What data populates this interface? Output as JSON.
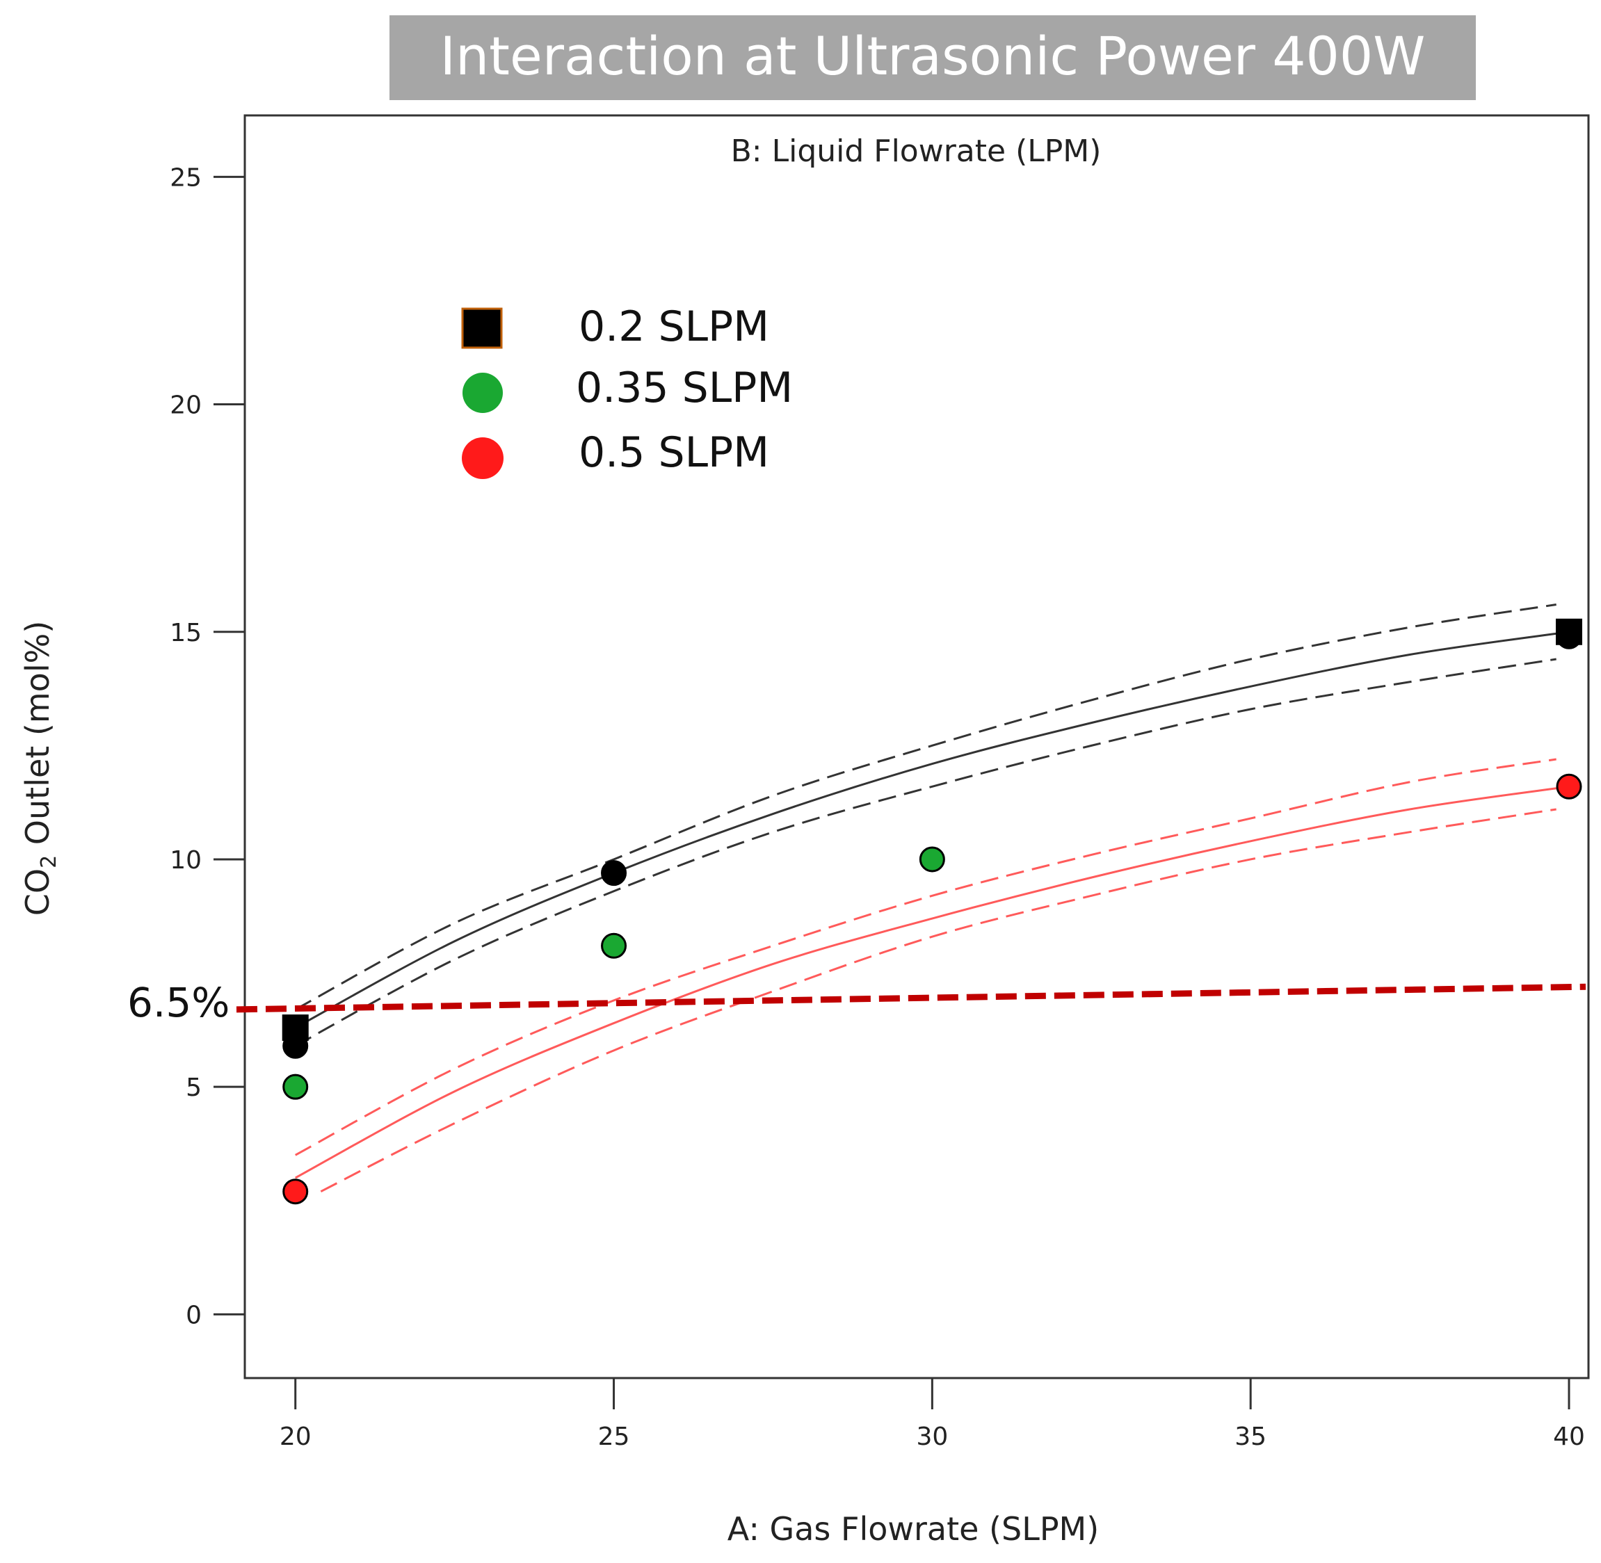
{
  "colors": {
    "title_bg": "#a6a6a6",
    "title_fg": "#ffffff",
    "black_series": "#000000",
    "green_series": "#1aa832",
    "red_series": "#ff1a1a",
    "red_fit": "#ff5a5a",
    "threshold": "#c00000",
    "axis": "#333333"
  },
  "chart_data": {
    "type": "scatter",
    "title": "Interaction at Ultrasonic Power 400W",
    "subtitle": "B: Liquid Flowrate (LPM)",
    "xlabel": "A: Gas Flowrate (SLPM)",
    "ylabel_main": "CO",
    "ylabel_sub": "2",
    "ylabel_rest": " Outlet (mol%)",
    "xlim": [
      18.9,
      40.0
    ],
    "ylim": [
      -1.4,
      26.35
    ],
    "x_ticks": [
      20,
      25,
      30,
      35,
      40
    ],
    "y_ticks": [
      0,
      5,
      10,
      15,
      20,
      25
    ],
    "legend": [
      {
        "label": "0.2 SLPM",
        "marker": "square",
        "color": "#000000"
      },
      {
        "label": "0.35 SLPM",
        "marker": "circle",
        "color": "#1aa832"
      },
      {
        "label": "0.5 SLPM",
        "marker": "circle",
        "color": "#ff1a1a"
      }
    ],
    "series": [
      {
        "name": "0.2 SLPM",
        "color": "#000000",
        "points": [
          {
            "x": 20,
            "y": 6.3,
            "marker": "square"
          },
          {
            "x": 20,
            "y": 5.9,
            "marker": "circle"
          },
          {
            "x": 25,
            "y": 9.7,
            "marker": "circle"
          },
          {
            "x": 40,
            "y": 15.0,
            "marker": "square"
          },
          {
            "x": 40,
            "y": 14.9,
            "marker": "circle"
          }
        ],
        "fit": {
          "x": [
            20,
            22.5,
            25,
            27.5,
            30,
            32.5,
            35,
            37.5,
            40
          ],
          "y": [
            6.3,
            8.2,
            9.7,
            11.0,
            12.1,
            13.0,
            13.8,
            14.5,
            15.0
          ]
        },
        "ci_upper": {
          "x": [
            20,
            22.5,
            25,
            27.5,
            30,
            32.5,
            35,
            37.5,
            39.8
          ],
          "y": [
            6.7,
            8.6,
            10.0,
            11.4,
            12.5,
            13.5,
            14.4,
            15.1,
            15.6
          ]
        },
        "ci_lower": {
          "x": [
            20,
            22.5,
            25,
            27.5,
            30,
            32.5,
            35,
            37.5,
            39.8
          ],
          "y": [
            5.9,
            7.8,
            9.3,
            10.6,
            11.6,
            12.5,
            13.3,
            13.9,
            14.4
          ]
        }
      },
      {
        "name": "0.35 SLPM",
        "color": "#1aa832",
        "points": [
          {
            "x": 20,
            "y": 5.0,
            "marker": "circle"
          },
          {
            "x": 25,
            "y": 8.1,
            "marker": "circle"
          },
          {
            "x": 30,
            "y": 10.0,
            "marker": "circle"
          }
        ]
      },
      {
        "name": "0.5 SLPM",
        "color": "#ff1a1a",
        "points": [
          {
            "x": 20,
            "y": 2.7,
            "marker": "circle"
          },
          {
            "x": 40,
            "y": 11.6,
            "marker": "circle"
          }
        ],
        "fit": {
          "x": [
            20,
            22.5,
            25,
            27.5,
            30,
            32.5,
            35,
            37.5,
            40
          ],
          "y": [
            3.0,
            4.9,
            6.4,
            7.7,
            8.7,
            9.6,
            10.4,
            11.1,
            11.6
          ]
        },
        "ci_upper": {
          "x": [
            20,
            22.5,
            25,
            27.5,
            30,
            32.5,
            35,
            37.5,
            39.8
          ],
          "y": [
            3.5,
            5.4,
            6.9,
            8.1,
            9.2,
            10.1,
            10.9,
            11.7,
            12.2
          ]
        },
        "ci_lower": {
          "x": [
            20.4,
            22.5,
            25,
            27.5,
            30,
            32.5,
            35,
            37.5,
            39.8
          ],
          "y": [
            2.7,
            4.2,
            5.8,
            7.1,
            8.3,
            9.2,
            10.0,
            10.6,
            11.1
          ]
        }
      }
    ],
    "threshold": {
      "label": "6.5%",
      "y_start": 6.7,
      "y_end": 7.2
    }
  }
}
